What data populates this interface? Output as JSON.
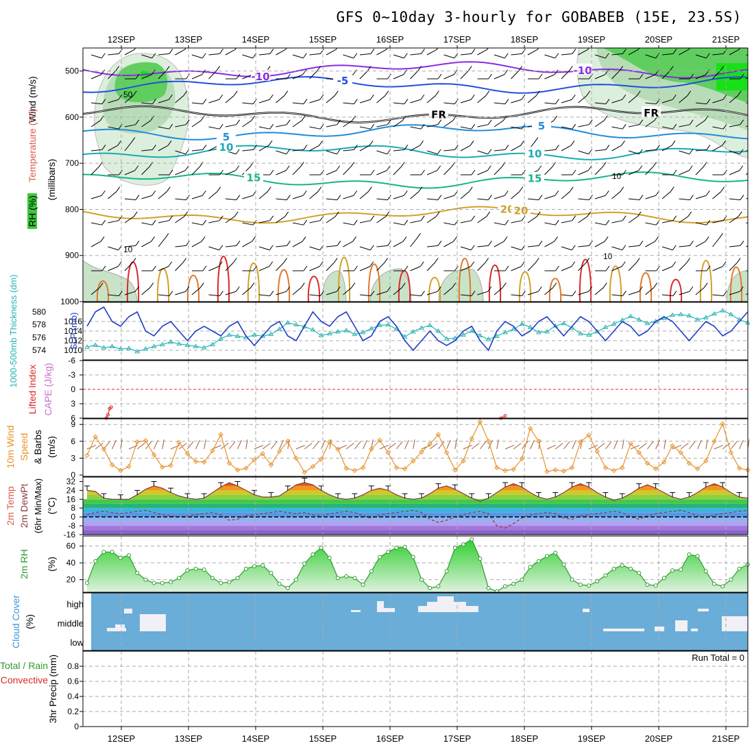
{
  "title": "GFS 0~10day 3-hourly for GOBABEB (15E, 23.5S)",
  "dates": [
    "12SEP",
    "13SEP",
    "14SEP",
    "15SEP",
    "16SEP",
    "17SEP",
    "18SEP",
    "19SEP",
    "20SEP",
    "21SEP"
  ],
  "run_total": "Run Total = 0",
  "colors": {
    "rh": "#3cc83c",
    "wind10": "#e89028",
    "slp": "#1e3cc8",
    "thick": "#28b4b4",
    "li": "#dc2828",
    "cloud": "#6aadd8",
    "rh2m": "#2e9a2e"
  },
  "chart_data": [
    {
      "type": "heatmap",
      "name": "vertical_cross_section",
      "ylabel_parts": [
        "Wind (m/s)",
        "Temperature (°C)",
        "RH (%)",
        "(millibars)"
      ],
      "ylim": [
        1000,
        450
      ],
      "yticks": [
        500,
        600,
        700,
        800,
        900,
        1000
      ],
      "yticklabels": [
        "500",
        "600",
        "700",
        "800",
        "900",
        "1000"
      ],
      "isotherms": [
        {
          "label": "-10",
          "level": 497
        },
        {
          "label": "-5",
          "level": 530
        },
        {
          "label": "FR",
          "level": 594
        },
        {
          "label": "5",
          "level": 632
        },
        {
          "label": "10",
          "level": 676
        },
        {
          "label": "15",
          "level": 737
        },
        {
          "label": "20",
          "level": 812
        }
      ],
      "rh_contour_labels": [
        "50",
        "10",
        "10",
        "10"
      ]
    },
    {
      "type": "line",
      "name": "slp_thickness",
      "ylabel_left": "1000-500mb Thickness (dm)",
      "ylabel_right": "SLP (mb)",
      "yticks_left": [
        "580",
        "578",
        "576",
        "574"
      ],
      "yticks_right": [
        "1016",
        "1014",
        "1012",
        "1010"
      ],
      "ylim_slp": [
        1008,
        1020
      ],
      "series": [
        {
          "name": "SLP (mb)",
          "values": [
            1015,
            1018,
            1019,
            1016,
            1015,
            1017,
            1018,
            1014,
            1013,
            1015,
            1016,
            1014,
            1012,
            1014,
            1015,
            1014,
            1013,
            1015,
            1016,
            1013,
            1011,
            1013,
            1015,
            1016,
            1013,
            1012,
            1015,
            1018,
            1016,
            1015,
            1017,
            1018,
            1015,
            1012,
            1013,
            1016,
            1017,
            1015,
            1012,
            1010,
            1012,
            1014,
            1012,
            1011,
            1012,
            1014,
            1015,
            1012,
            1010,
            1014,
            1016,
            1015,
            1013,
            1014,
            1016,
            1017,
            1015,
            1013,
            1015,
            1017,
            1016,
            1014,
            1012,
            1014,
            1016,
            1015,
            1013,
            1014,
            1016,
            1017,
            1016,
            1014,
            1012,
            1014,
            1016,
            1015,
            1013,
            1014,
            1016,
            1018
          ]
        },
        {
          "name": "Thickness (dm)",
          "values": [
            574.5,
            574.8,
            574.4,
            574.6,
            574.2,
            574.3,
            573.8,
            574.2,
            574.6,
            574.9,
            575.3,
            575.0,
            574.8,
            574.6,
            574.4,
            574.9,
            575.8,
            576.4,
            576.2,
            576.0,
            576.4,
            576.2,
            576.5,
            577.3,
            578.3,
            578.0,
            577.7,
            577.2,
            576.3,
            576.6,
            576.9,
            577.1,
            576.5,
            576.8,
            577.4,
            577.9,
            578.0,
            577.3,
            576.1,
            576.9,
            577.5,
            577.9,
            577.0,
            575.8,
            575.9,
            576.4,
            577.0,
            576.3,
            575.7,
            576.2,
            576.8,
            577.3,
            578.1,
            577.6,
            576.8,
            576.9,
            577.8,
            578.2,
            577.5,
            576.6,
            576.4,
            576.9,
            577.6,
            578.1,
            578.7,
            579.3,
            578.8,
            578.2,
            578.5,
            579.0,
            579.5,
            579.6,
            579.4,
            578.8,
            579.1,
            579.7,
            580.2,
            579.6,
            578.8,
            578.3
          ]
        }
      ]
    },
    {
      "type": "line",
      "name": "lifted_index_cape",
      "ylabel_left": "Lifted Index",
      "ylabel_right": "CAPE (J/kg)",
      "yticks": [
        "-6",
        "-3",
        "0",
        "3",
        "6"
      ],
      "ylim": [
        -6,
        6
      ],
      "series": [
        {
          "name": "Lifted Index",
          "segments": [
            {
              "x": [
                2.3,
                2.5,
                2.7,
                2.9
              ],
              "y": [
                6,
                5.3,
                4.0,
                3.7
              ]
            },
            {
              "x": [
                49.5,
                50.0
              ],
              "y": [
                6,
                5.5
              ]
            }
          ]
        }
      ]
    },
    {
      "type": "line",
      "name": "wind_10m",
      "ylabel_parts": [
        "10m Wind",
        "Speed",
        "& Barbs",
        "(m/s)"
      ],
      "yticks": [
        "0",
        "3",
        "6",
        "9"
      ],
      "ylim": [
        0,
        10
      ],
      "series": [
        {
          "name": "10m Wind Speed",
          "values": [
            3.5,
            6.8,
            4.6,
            1.8,
            0.8,
            1.5,
            5.9,
            6.1,
            3.6,
            1.4,
            1.7,
            5.8,
            3.8,
            2.4,
            2.3,
            4.3,
            7.2,
            2.1,
            0.9,
            1.2,
            2.7,
            3.8,
            1.8,
            4.2,
            6.0,
            3.0,
            0.5,
            1.5,
            2.8,
            5.9,
            4.6,
            1.2,
            0.8,
            1.3,
            4.6,
            6.2,
            4.0,
            1.3,
            1.1,
            2.5,
            4.1,
            5.5,
            7.2,
            4.0,
            0.9,
            2.5,
            6.5,
            9.5,
            6.0,
            1.3,
            0.8,
            1.0,
            2.9,
            8.3,
            6.0,
            0.6,
            0.9,
            0.7,
            1.3,
            5.9,
            7.1,
            4.2,
            1.3,
            0.8,
            1.3,
            5.6,
            4.0,
            2.1,
            1.1,
            2.3,
            5.2,
            4.0,
            2.1,
            1.1,
            2.5,
            6.0,
            9.1,
            4.0,
            1.2,
            0.9
          ]
        }
      ]
    },
    {
      "type": "area",
      "name": "temp_2m",
      "ylabel_parts": [
        "2m Temp",
        "2m DewPt",
        "(6hr Min/Max)",
        "(°C)"
      ],
      "yticks": [
        "32",
        "24",
        "16",
        "8",
        "0",
        "-8",
        "-16"
      ],
      "ylim": [
        -16,
        36
      ],
      "series": [
        {
          "name": "2m Temp",
          "values": [
            24,
            23,
            17,
            16,
            16,
            16,
            20,
            25,
            28,
            26,
            22,
            19,
            17,
            16,
            17,
            22,
            27,
            31,
            28,
            24,
            20,
            18,
            18,
            19,
            24,
            29,
            31,
            29,
            24,
            20,
            17,
            16,
            17,
            20,
            24,
            26,
            24,
            20,
            17,
            16,
            17,
            21,
            26,
            28,
            25,
            21,
            17,
            14,
            17,
            22,
            27,
            30,
            27,
            22,
            18,
            16,
            18,
            22,
            27,
            30,
            27,
            22,
            18,
            15,
            17,
            21,
            26,
            29,
            26,
            22,
            18,
            16,
            18,
            22,
            27,
            30,
            27,
            22,
            18,
            17
          ]
        },
        {
          "name": "2m DewPt",
          "values": [
            2,
            4,
            5,
            4,
            3,
            4,
            5,
            6,
            4,
            2,
            1,
            0,
            1,
            2,
            3,
            4,
            2,
            -3,
            -2,
            1,
            2,
            3,
            4,
            5,
            4,
            3,
            4,
            2,
            1,
            3,
            4,
            5,
            4,
            1,
            -1,
            2,
            3,
            4,
            5,
            6,
            4,
            -2,
            -5,
            -3,
            0,
            2,
            4,
            5,
            3,
            -8,
            -10,
            -6,
            -1,
            2,
            3,
            4,
            3,
            -1,
            -2,
            1,
            2,
            3,
            4,
            5,
            4,
            0,
            -2,
            1,
            3,
            4,
            5,
            6,
            4,
            1,
            -1,
            2,
            3,
            4,
            5,
            6
          ]
        }
      ]
    },
    {
      "type": "area",
      "name": "rh_2m",
      "ylabel": "2m RH",
      "yunit": "(%)",
      "yticks": [
        "60",
        "40",
        "20"
      ],
      "ylim": [
        5,
        72
      ],
      "series": [
        {
          "name": "2m RH",
          "values": [
            16,
            42,
            53,
            53,
            46,
            49,
            28,
            20,
            16,
            16,
            17,
            22,
            31,
            33,
            32,
            22,
            16,
            17,
            22,
            33,
            36,
            37,
            28,
            15,
            10,
            20,
            39,
            50,
            58,
            46,
            22,
            24,
            22,
            14,
            30,
            47,
            53,
            58,
            59,
            47,
            20,
            10,
            12,
            30,
            58,
            62,
            68,
            45,
            10,
            6,
            12,
            15,
            20,
            35,
            42,
            48,
            52,
            38,
            20,
            14,
            13,
            18,
            25,
            33,
            37,
            33,
            28,
            14,
            13,
            22,
            31,
            32,
            50,
            48,
            30,
            15,
            12,
            20,
            33,
            38
          ]
        }
      ]
    },
    {
      "type": "bar",
      "name": "cloud_cover",
      "ylabel": "Cloud Cover",
      "yunit": "(%)",
      "yticklabels": [
        "high",
        "middle",
        "low"
      ]
    },
    {
      "type": "bar",
      "name": "precip_3hr",
      "ylabel_parts": [
        "3hr Precip (mm)"
      ],
      "legend_parts": [
        "Total / Rain",
        "Convective"
      ],
      "yticks": [
        "0.8",
        "0.6",
        "0.4",
        "0.2",
        "0"
      ],
      "ylim": [
        0,
        1
      ],
      "values": []
    }
  ]
}
